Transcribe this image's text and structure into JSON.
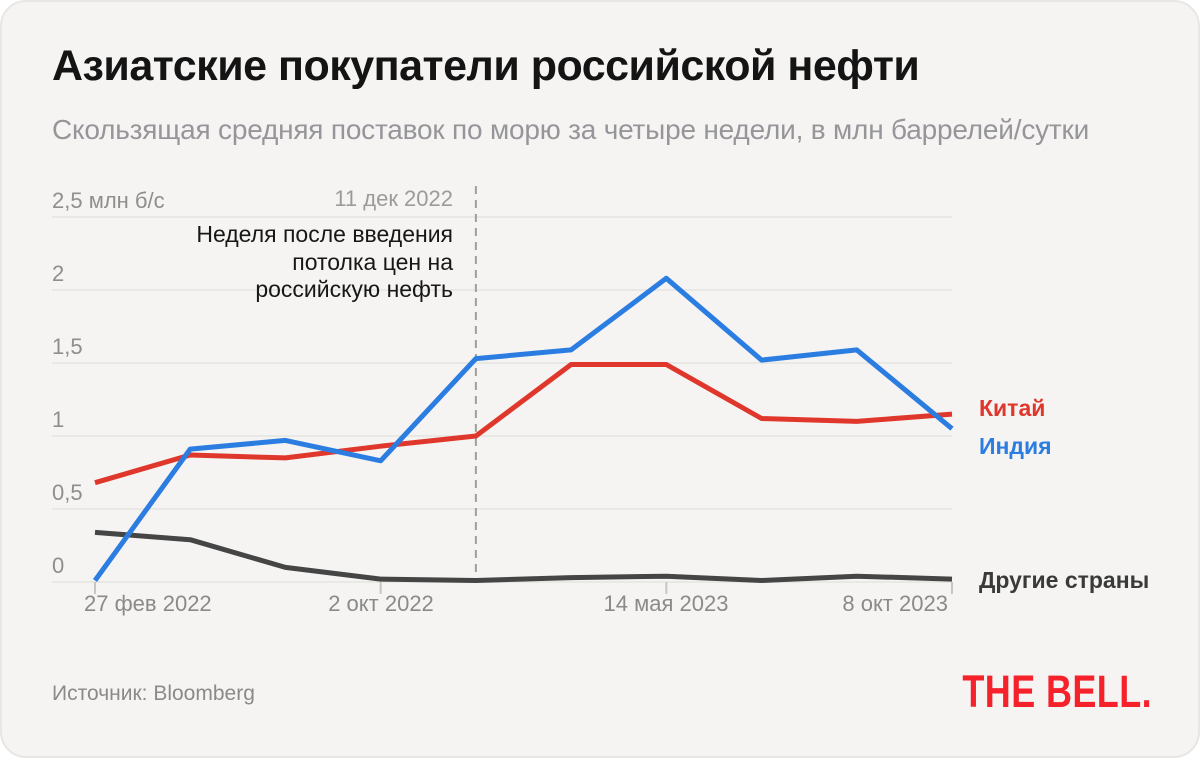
{
  "title": "Азиатские покупатели российской нефти",
  "subtitle": "Скользящая средняя поставок по морю за четыре недели, в млн баррелей/сутки",
  "source": "Источник: Bloomberg",
  "logo": "THE BELL.",
  "annotation": {
    "date_label": "11 дек 2022",
    "lines": [
      "Неделя после введения",
      "потолка цен на",
      "российскую нефть"
    ]
  },
  "colors": {
    "card_bg": "#f5f4f2",
    "page_bg": "#ffffff",
    "grid": "#e4e3e0",
    "tick": "#c7c6c4",
    "dashed": "#9f9f9d",
    "title": "#141414",
    "subtitle": "#96969a",
    "axis_label": "#8e8e8c",
    "annotation": "#171717",
    "logo_red": "#f5222b"
  },
  "chart_data": {
    "type": "line",
    "unit": "млн баррелей/сутки",
    "n_points": 10,
    "x_tick_labels": [
      "27 фев 2022",
      "2 окт 2022",
      "14 мая 2023",
      "8 окт 2023"
    ],
    "x_tick_indices": [
      0,
      3,
      6,
      9
    ],
    "y_tick_values": [
      0,
      0.5,
      1,
      1.5,
      2,
      2.5
    ],
    "y_tick_labels": [
      "0",
      "0,5",
      "1",
      "1,5",
      "2",
      "2,5 млн б/с"
    ],
    "ylim": [
      0,
      2.5
    ],
    "grid": true,
    "vline_index": 4,
    "vline_label": "11 дек 2022",
    "series": [
      {
        "name": "Китай",
        "color": "#e0372d",
        "values": [
          0.68,
          0.87,
          0.85,
          0.93,
          1.0,
          1.49,
          1.49,
          1.12,
          1.1,
          1.15
        ]
      },
      {
        "name": "Индия",
        "color": "#2b7de1",
        "values": [
          0.01,
          0.91,
          0.97,
          0.83,
          1.53,
          1.59,
          2.08,
          1.52,
          1.59,
          1.05
        ]
      },
      {
        "name": "Другие страны",
        "color": "#454545",
        "values": [
          0.34,
          0.29,
          0.1,
          0.02,
          0.01,
          0.03,
          0.04,
          0.01,
          0.04,
          0.02
        ]
      }
    ]
  }
}
